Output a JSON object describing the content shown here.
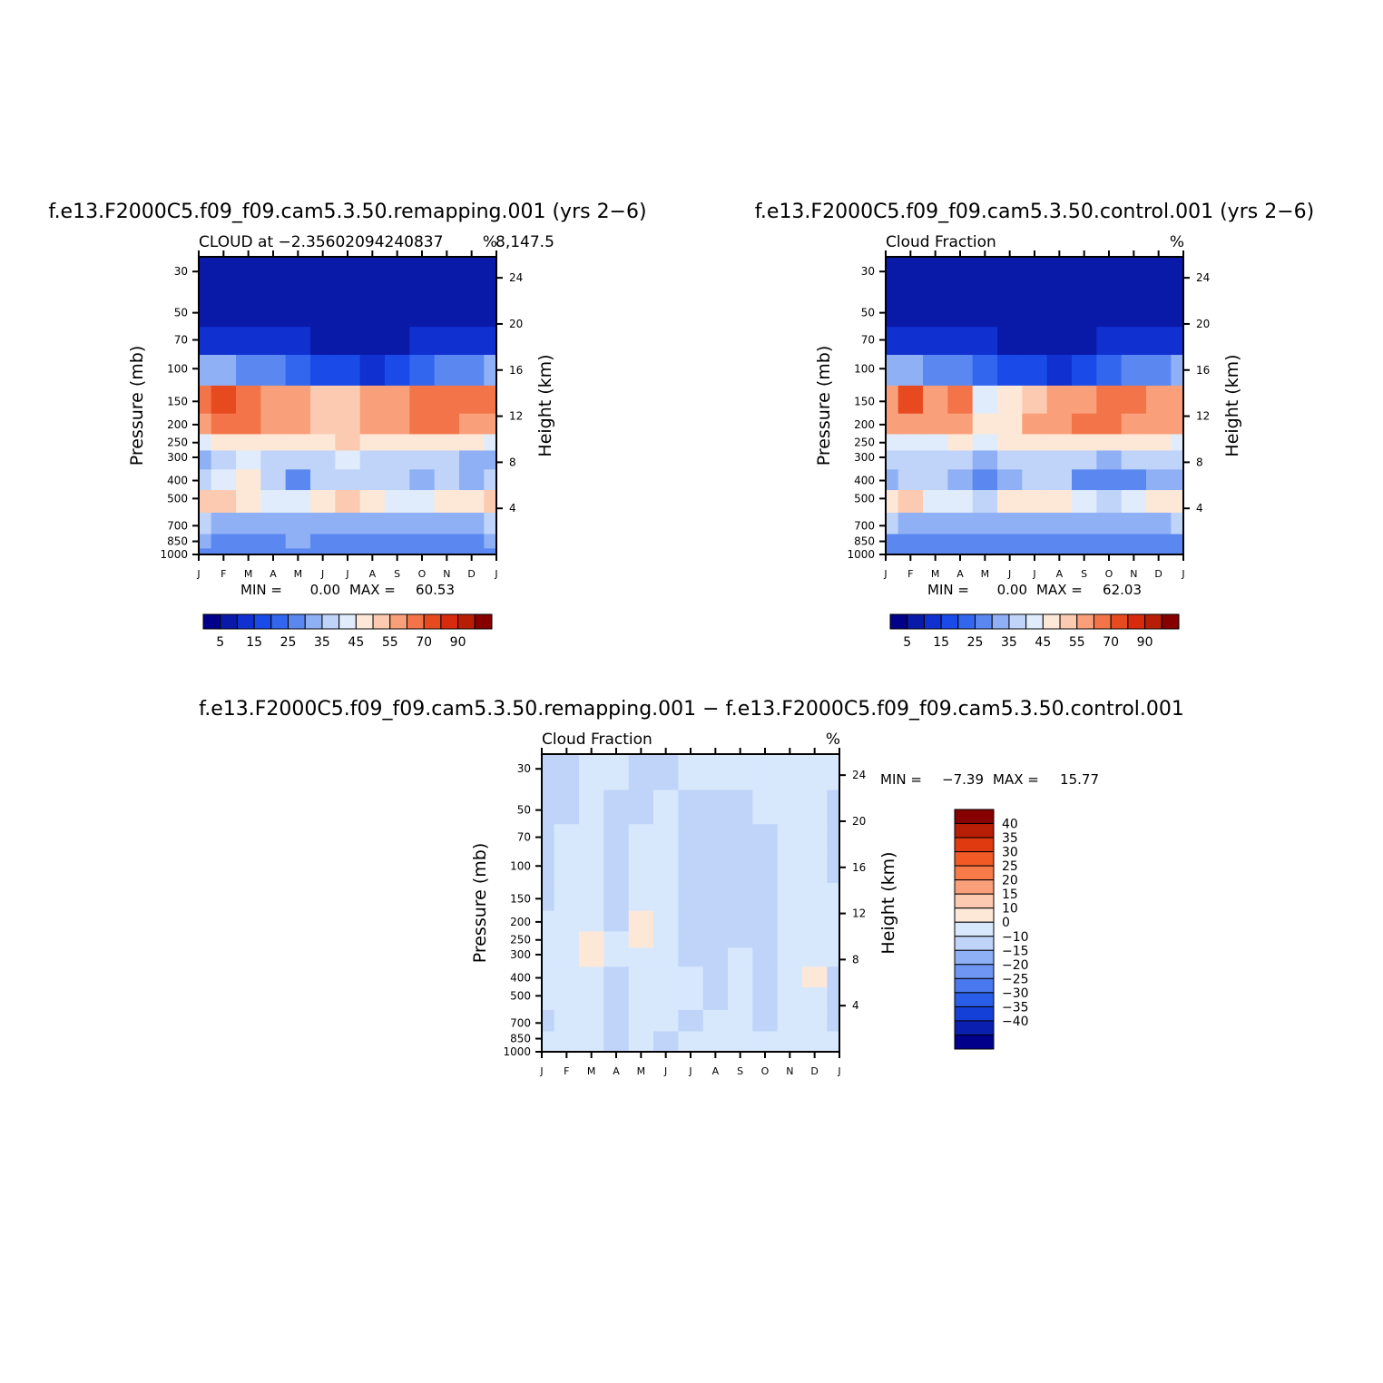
{
  "months": [
    "J",
    "F",
    "M",
    "A",
    "M",
    "J",
    "J",
    "A",
    "S",
    "O",
    "N",
    "D",
    "J"
  ],
  "pressure_ticks": [
    30,
    50,
    70,
    100,
    150,
    200,
    250,
    300,
    400,
    500,
    700,
    850,
    1000
  ],
  "height_ticks": [
    4,
    8,
    12,
    16,
    20,
    24
  ],
  "ylabel_left": "Pressure  (mb)",
  "ylabel_right": "Height  (km)",
  "panels": [
    {
      "title": "f.e13.F2000C5.f09_f09.cam5.3.50.remapping.001  (yrs  2−6)",
      "left_label": "CLOUD  at  −2.35602094240837",
      "left_label_tail": "8,147.5",
      "unit": "%",
      "min_label": "MIN  =",
      "min_value": "0.00",
      "max_label": "MAX  =",
      "max_value": "60.53"
    },
    {
      "title": "f.e13.F2000C5.f09_f09.cam5.3.50.control.001  (yrs  2−6)",
      "left_label": "Cloud  Fraction",
      "unit": "%",
      "min_label": "MIN  =",
      "min_value": "0.00",
      "max_label": "MAX  =",
      "max_value": "62.03"
    },
    {
      "title": "f.e13.F2000C5.f09_f09.cam5.3.50.remapping.001  −  f.e13.F2000C5.f09_f09.cam5.3.50.control.001",
      "left_label": "Cloud  Fraction",
      "unit": "%",
      "min_label": "MIN  =",
      "min_value": "−7.39",
      "max_label": "MAX  =",
      "max_value": "15.77"
    }
  ],
  "colorbar_abs": {
    "colors": [
      "#00008b",
      "#0a1aa8",
      "#1030d0",
      "#1a4ae8",
      "#3366ee",
      "#5a88f0",
      "#8fb0f4",
      "#bfd4f8",
      "#e0ecfb",
      "#fde8d8",
      "#fbcab0",
      "#f9a07a",
      "#f37448",
      "#e84a20",
      "#d82a0c",
      "#b81e05",
      "#870000"
    ],
    "labels": [
      "5",
      "15",
      "25",
      "35",
      "45",
      "55",
      "70",
      "90"
    ]
  },
  "colorbar_diff": {
    "colors": [
      "#870000",
      "#b81e05",
      "#e03a10",
      "#f25a25",
      "#f77b48",
      "#f9a07a",
      "#fbcab0",
      "#fde8d8",
      "#d7e8fd",
      "#bfd4f8",
      "#8fb0f4",
      "#6e96f2",
      "#4a78ee",
      "#2a5ee8",
      "#1540d8",
      "#0a1fb0",
      "#00008b"
    ],
    "labels": [
      "40",
      "35",
      "30",
      "25",
      "20",
      "15",
      "10",
      "0",
      "−10",
      "−15",
      "−20",
      "−25",
      "−30",
      "−35",
      "−40"
    ]
  },
  "chart_data": [
    {
      "type": "heatmap",
      "title": "f.e13.F2000C5.f09_f09.cam5.3.50.remapping.001  (yrs  2−6)",
      "xlabel": "",
      "ylabel": "Pressure  (mb)",
      "ylabel_right": "Height  (km)",
      "x": [
        "J",
        "F",
        "M",
        "A",
        "M",
        "J",
        "J",
        "A",
        "S",
        "O",
        "N",
        "D",
        "J"
      ],
      "y_pressure_mb": [
        1000,
        850,
        700,
        500,
        400,
        300,
        250,
        200,
        150,
        100,
        70,
        50,
        30
      ],
      "min": 0.0,
      "max": 60.53,
      "values": [
        [
          22,
          22,
          21,
          22,
          22,
          21,
          22,
          23,
          22,
          21,
          21,
          22,
          22
        ],
        [
          25,
          24,
          22,
          24,
          25,
          23,
          22,
          24,
          23,
          22,
          22,
          24,
          25
        ],
        [
          30,
          29,
          27,
          28,
          29,
          28,
          27,
          28,
          28,
          27,
          26,
          27,
          30
        ],
        [
          46,
          48,
          40,
          37,
          38,
          44,
          46,
          42,
          38,
          38,
          40,
          42,
          46
        ],
        [
          30,
          36,
          40,
          30,
          24,
          30,
          34,
          34,
          30,
          28,
          30,
          28,
          30
        ],
        [
          26,
          34,
          36,
          34,
          30,
          34,
          36,
          34,
          34,
          32,
          32,
          28,
          26
        ],
        [
          38,
          40,
          42,
          44,
          42,
          44,
          46,
          44,
          44,
          44,
          42,
          40,
          38
        ],
        [
          52,
          56,
          56,
          52,
          50,
          46,
          46,
          50,
          52,
          55,
          55,
          50,
          52
        ],
        [
          55,
          60,
          58,
          52,
          50,
          46,
          46,
          50,
          53,
          56,
          58,
          55,
          55
        ],
        [
          26,
          26,
          24,
          20,
          18,
          14,
          10,
          8,
          10,
          16,
          20,
          24,
          26
        ],
        [
          8,
          8,
          7,
          6,
          5,
          4,
          3,
          3,
          3,
          5,
          6,
          7,
          8
        ],
        [
          2,
          2,
          2,
          2,
          2,
          2,
          2,
          2,
          2,
          2,
          2,
          2,
          2
        ],
        [
          1,
          1,
          1,
          1,
          1,
          1,
          1,
          1,
          1,
          1,
          1,
          1,
          1
        ]
      ]
    },
    {
      "type": "heatmap",
      "title": "f.e13.F2000C5.f09_f09.cam5.3.50.control.001  (yrs  2−6)",
      "xlabel": "",
      "ylabel": "Pressure  (mb)",
      "ylabel_right": "Height  (km)",
      "x": [
        "J",
        "F",
        "M",
        "A",
        "M",
        "J",
        "J",
        "A",
        "S",
        "O",
        "N",
        "D",
        "J"
      ],
      "y_pressure_mb": [
        1000,
        850,
        700,
        500,
        400,
        300,
        250,
        200,
        150,
        100,
        70,
        50,
        30
      ],
      "min": 0.0,
      "max": 62.03,
      "values": [
        [
          22,
          22,
          21,
          22,
          22,
          21,
          22,
          23,
          22,
          21,
          21,
          22,
          22
        ],
        [
          24,
          23,
          22,
          24,
          24,
          23,
          22,
          23,
          23,
          22,
          21,
          22,
          24
        ],
        [
          30,
          28,
          26,
          27,
          28,
          28,
          27,
          27,
          27,
          26,
          25,
          26,
          30
        ],
        [
          44,
          46,
          38,
          36,
          34,
          40,
          44,
          40,
          36,
          34,
          36,
          40,
          44
        ],
        [
          28,
          32,
          34,
          28,
          20,
          28,
          34,
          30,
          24,
          22,
          24,
          26,
          28
        ],
        [
          30,
          32,
          32,
          30,
          26,
          32,
          34,
          32,
          30,
          28,
          30,
          30,
          30
        ],
        [
          36,
          38,
          38,
          40,
          38,
          40,
          42,
          42,
          42,
          44,
          42,
          40,
          36
        ],
        [
          50,
          54,
          50,
          54,
          40,
          44,
          50,
          54,
          56,
          58,
          54,
          50,
          50
        ],
        [
          54,
          60,
          52,
          56,
          38,
          44,
          48,
          52,
          54,
          58,
          56,
          52,
          54
        ],
        [
          26,
          26,
          24,
          20,
          18,
          14,
          10,
          8,
          10,
          16,
          20,
          24,
          26
        ],
        [
          8,
          8,
          7,
          6,
          5,
          4,
          3,
          3,
          3,
          5,
          6,
          7,
          8
        ],
        [
          2,
          2,
          2,
          2,
          2,
          2,
          2,
          2,
          2,
          2,
          2,
          2,
          2
        ],
        [
          1,
          1,
          1,
          1,
          1,
          1,
          1,
          1,
          1,
          1,
          1,
          1,
          1
        ]
      ]
    },
    {
      "type": "heatmap",
      "title": "f.e13.F2000C5.f09_f09.cam5.3.50.remapping.001  −  f.e13.F2000C5.f09_f09.cam5.3.50.control.001",
      "xlabel": "",
      "ylabel": "Pressure  (mb)",
      "ylabel_right": "Height  (km)",
      "x": [
        "J",
        "F",
        "M",
        "A",
        "M",
        "J",
        "J",
        "A",
        "S",
        "O",
        "N",
        "D",
        "J"
      ],
      "y_pressure_mb": [
        1000,
        850,
        700,
        500,
        400,
        300,
        250,
        200,
        150,
        100,
        70,
        50,
        30
      ],
      "min": -7.39,
      "max": 15.77,
      "values": [
        [
          3,
          3,
          3,
          -2,
          3,
          -2,
          3,
          3,
          3,
          3,
          3,
          3,
          3
        ],
        [
          3,
          3,
          3,
          -2,
          3,
          -2,
          3,
          3,
          3,
          3,
          3,
          3,
          3
        ],
        [
          -2,
          3,
          3,
          -2,
          3,
          3,
          -2,
          3,
          3,
          -2,
          3,
          3,
          -2
        ],
        [
          3,
          3,
          3,
          -2,
          3,
          3,
          3,
          -2,
          3,
          -2,
          3,
          3,
          -2
        ],
        [
          3,
          3,
          5,
          -2,
          5,
          3,
          3,
          -2,
          3,
          -2,
          3,
          12,
          -2
        ],
        [
          3,
          3,
          12,
          3,
          5,
          3,
          -2,
          -2,
          3,
          -2,
          3,
          8,
          3
        ],
        [
          3,
          3,
          12,
          3,
          12,
          3,
          -2,
          -2,
          -2,
          -2,
          3,
          5,
          3
        ],
        [
          3,
          3,
          5,
          -2,
          12,
          5,
          -2,
          -2,
          -2,
          -2,
          3,
          5,
          3
        ],
        [
          -2,
          3,
          3,
          -2,
          5,
          3,
          -2,
          -2,
          -2,
          -2,
          3,
          3,
          3
        ],
        [
          -2,
          3,
          3,
          -2,
          3,
          3,
          -2,
          -2,
          -2,
          -2,
          3,
          3,
          -2
        ],
        [
          -2,
          3,
          3,
          -2,
          3,
          3,
          -2,
          -2,
          -2,
          -2,
          3,
          3,
          -2
        ],
        [
          -2,
          -2,
          3,
          -2,
          -2,
          3,
          -2,
          -2,
          -2,
          3,
          3,
          3,
          -2
        ],
        [
          -2,
          -2,
          3,
          3,
          -2,
          -2,
          3,
          3,
          3,
          3,
          3,
          3,
          3
        ]
      ]
    }
  ]
}
